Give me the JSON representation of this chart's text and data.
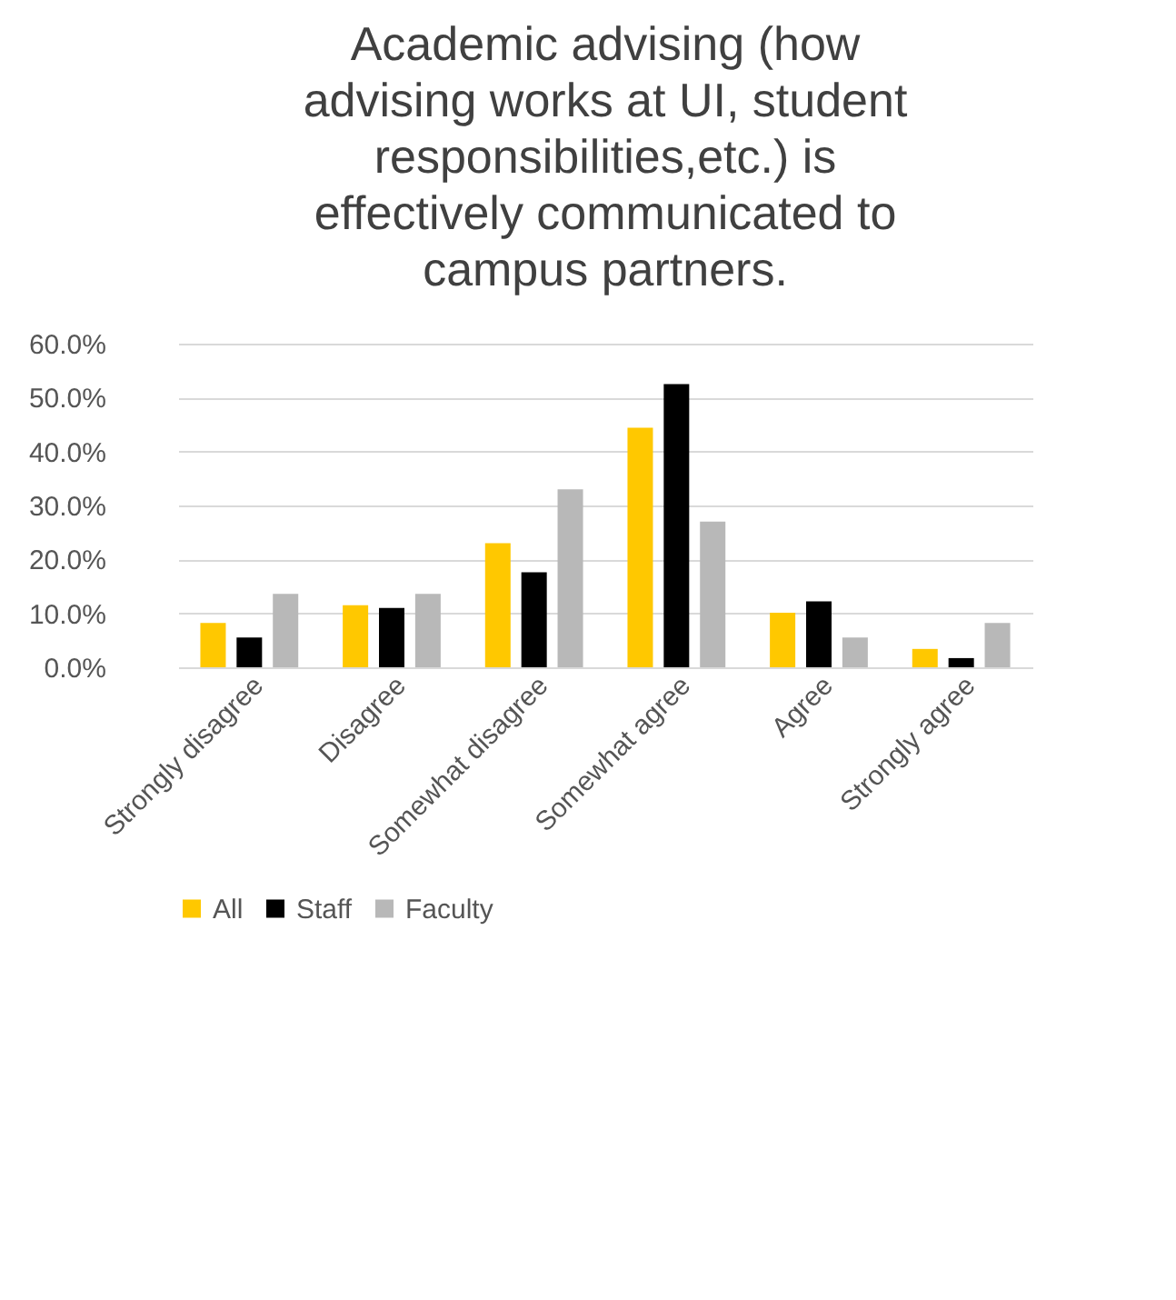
{
  "chart_data": {
    "type": "bar",
    "title": "Academic advising (how\nadvising works at UI, student\nresponsibilities,etc.) is\neffectively  communicated to\ncampus partners.",
    "categories": [
      "Strongly disagree",
      "Disagree",
      "Somewhat disagree",
      "Somewhat agree",
      "Agree",
      "Strongly agree"
    ],
    "series": [
      {
        "name": "All",
        "color": "#ffc800",
        "values": [
          8.2,
          11.5,
          23.0,
          44.4,
          10.1,
          3.4
        ]
      },
      {
        "name": "Staff",
        "color": "#000000",
        "values": [
          5.5,
          11.0,
          17.6,
          52.5,
          12.2,
          1.7
        ]
      },
      {
        "name": "Faculty",
        "color": "#b8b8b8",
        "values": [
          13.6,
          13.6,
          33.0,
          27.0,
          5.5,
          8.2
        ]
      }
    ],
    "ylim": [
      0,
      60
    ],
    "yticks": [
      {
        "value": 0,
        "label": "0.0%"
      },
      {
        "value": 10,
        "label": "10.0%"
      },
      {
        "value": 20,
        "label": "20.0%"
      },
      {
        "value": 30,
        "label": "30.0%"
      },
      {
        "value": 40,
        "label": "40.0%"
      },
      {
        "value": 50,
        "label": "50.0%"
      },
      {
        "value": 60,
        "label": "60.0%"
      }
    ],
    "grid": "y",
    "legend": "bottom"
  }
}
